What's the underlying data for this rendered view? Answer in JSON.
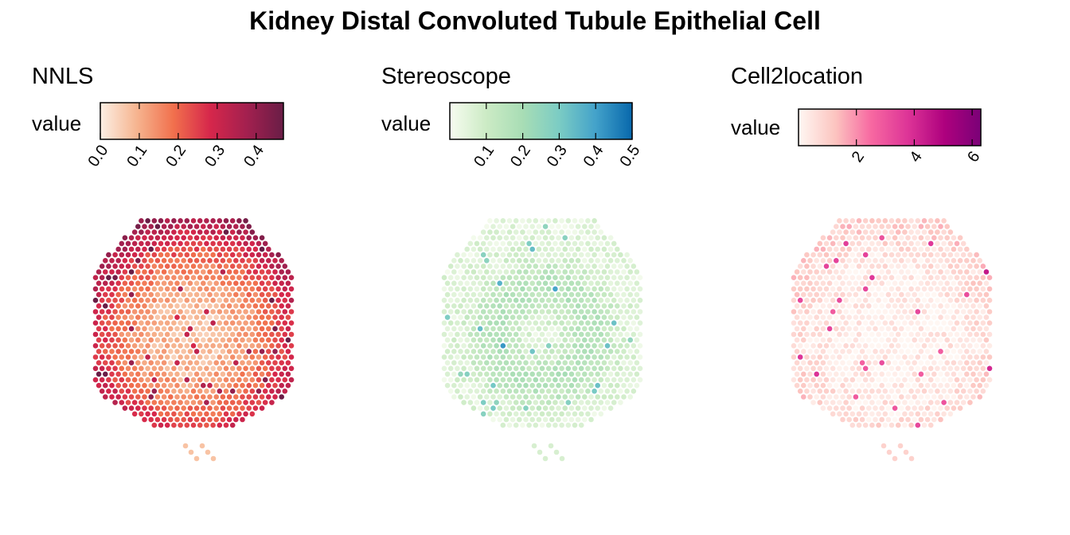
{
  "chart_data": {
    "type": "spatial-scatter",
    "title": "Kidney Distal Convoluted Tubule Epithelial Cell",
    "panels": [
      {
        "name": "NNLS",
        "legend_label": "value",
        "colorbar_range": [
          0,
          0.47
        ],
        "ticks": [
          0.0,
          0.1,
          0.2,
          0.3,
          0.4
        ],
        "tick_labels": [
          "0.0",
          "0.1",
          "0.2",
          "0.3",
          "0.4"
        ],
        "colors": [
          "#fcefe4",
          "#f6b48f",
          "#f1704d",
          "#d6274b",
          "#a3204f",
          "#691d46"
        ]
      },
      {
        "name": "Stereoscope",
        "legend_label": "value",
        "colorbar_range": [
          0.0,
          0.5
        ],
        "ticks": [
          0.1,
          0.2,
          0.3,
          0.4,
          0.5
        ],
        "tick_labels": [
          "0.1",
          "0.2",
          "0.3",
          "0.4",
          "0.5"
        ],
        "colors": [
          "#f7fcf0",
          "#ccebc5",
          "#a8ddb5",
          "#7bccc4",
          "#43a2ca",
          "#0868ac"
        ]
      },
      {
        "name": "Cell2location",
        "legend_label": "value",
        "colorbar_range": [
          0,
          6.3
        ],
        "ticks": [
          2,
          4,
          6
        ],
        "tick_labels": [
          "2",
          "4",
          "6"
        ],
        "colors": [
          "#fff7f3",
          "#fcc5c0",
          "#f768a1",
          "#dd3497",
          "#ae017e",
          "#7a0177"
        ]
      }
    ]
  }
}
